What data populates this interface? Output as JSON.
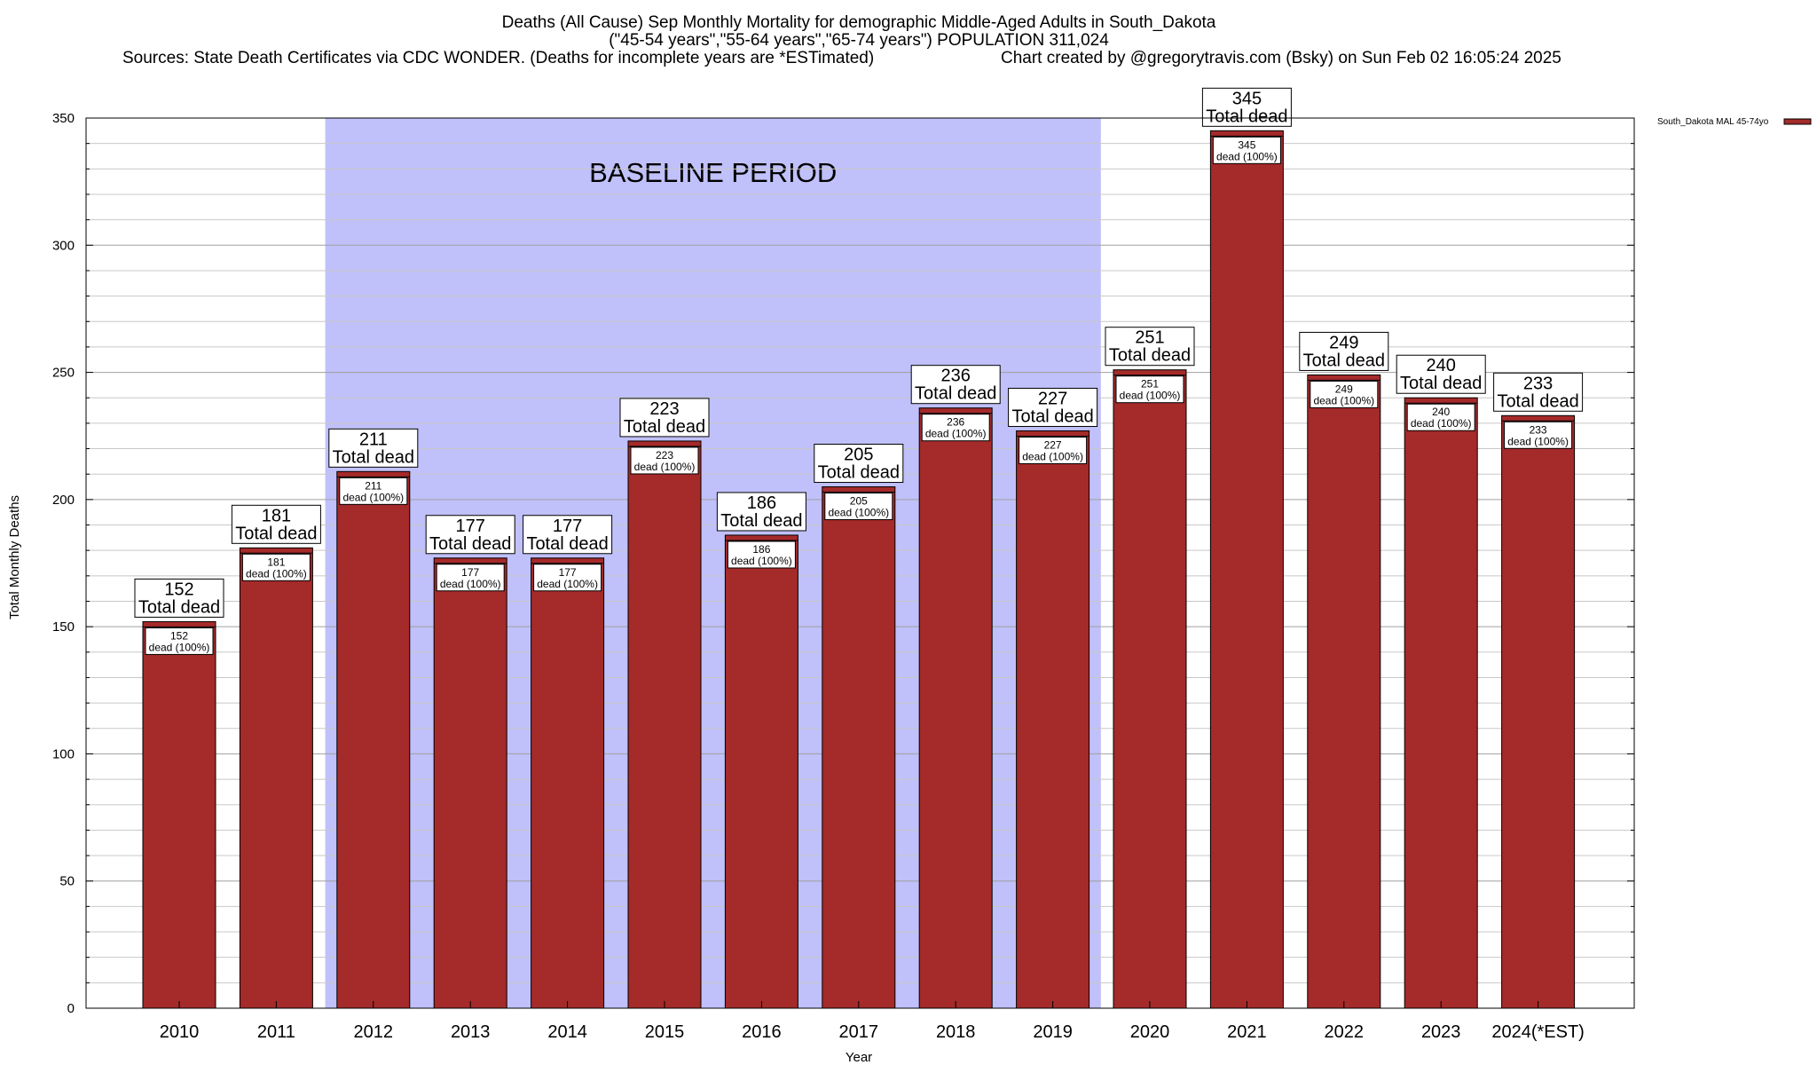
{
  "chart_data": {
    "type": "bar",
    "title_lines": [
      "Deaths (All Cause) Sep Monthly Mortality for demographic Middle-Aged Adults in South_Dakota",
      "(\"45-54 years\",\"55-64 years\",\"65-74 years\") POPULATION 311,024"
    ],
    "sources_text": "Sources: State Death Certificates via CDC WONDER. (Deaths for incomplete years are *ESTimated)",
    "credit_text": "Chart created by @gregorytravis.com (Bsky) on Sun Feb 02 16:05:24 2025",
    "xlabel": "Year",
    "ylabel": "Total Monthly Deaths",
    "ylim": [
      0,
      350
    ],
    "yticks": [
      0,
      50,
      100,
      150,
      200,
      250,
      300,
      350
    ],
    "minor_step": 10,
    "grid": true,
    "categories": [
      "2010",
      "2011",
      "2012",
      "2013",
      "2014",
      "2015",
      "2016",
      "2017",
      "2018",
      "2019",
      "2020",
      "2021",
      "2022",
      "2023",
      "2024(*EST)"
    ],
    "series": [
      {
        "name": "South_Dakota MAL 45-74yo",
        "color": "#a52a2a",
        "values": [
          152,
          181,
          211,
          177,
          177,
          223,
          186,
          205,
          236,
          227,
          251,
          345,
          249,
          240,
          233
        ]
      }
    ],
    "top_label_suffix": "Total dead",
    "inner_label_suffix": "dead (100%)",
    "baseline_region": {
      "label": "BASELINE PERIOD",
      "start": "2012",
      "end": "2019",
      "color": "#c0c0fa"
    },
    "legend_position": "top-right"
  }
}
